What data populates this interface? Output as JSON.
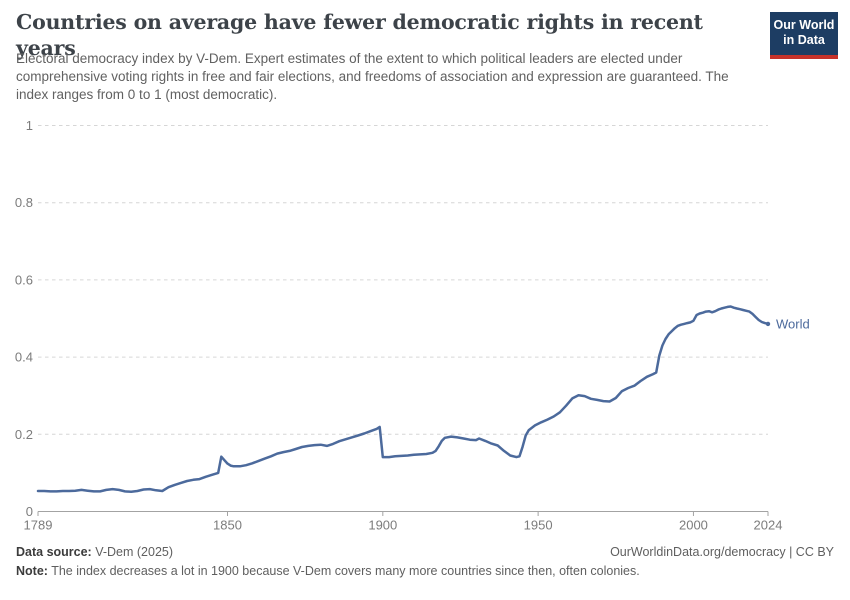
{
  "header": {
    "title": "Countries on average have fewer democratic rights in recent years",
    "logo_line1": "Our World",
    "logo_line2": "in Data",
    "logo_bg_color": "#1d3d63",
    "logo_accent_color": "#c6322a"
  },
  "subtitle": "Electoral democracy index by V-Dem. Expert estimates of the extent to which political leaders are elected under comprehensive voting rights in free and fair elections, and freedoms of association and expression are guaranteed. The index ranges from 0 to 1 (most democratic).",
  "chart_data": {
    "type": "line",
    "title": "Countries on average have fewer democratic rights in recent years",
    "xlabel": "",
    "ylabel": "Electoral democracy index",
    "x_range": [
      1789,
      2024
    ],
    "y_range": [
      0,
      1
    ],
    "grid": "horizontal-dashed",
    "xticks": [
      1789,
      1850,
      1900,
      1950,
      2000,
      2024
    ],
    "xtick_labels": [
      "1789",
      "1850",
      "1900",
      "1950",
      "2000",
      "2024"
    ],
    "yticks": [
      0,
      0.2,
      0.4,
      0.6,
      0.8,
      1
    ],
    "ytick_labels": [
      "0",
      "0.2",
      "0.4",
      "0.6",
      "0.8",
      "1"
    ],
    "line_color": "#4C6A9C",
    "grid_color": "#d6d6d6",
    "axis_color": "#a3a3a3",
    "tick_label_color": "#7c7c7c",
    "end_label": "World",
    "series": [
      {
        "name": "World",
        "color": "#4C6A9C",
        "points": [
          [
            1789,
            0.053
          ],
          [
            1791,
            0.053
          ],
          [
            1793,
            0.052
          ],
          [
            1795,
            0.052
          ],
          [
            1797,
            0.053
          ],
          [
            1799,
            0.053
          ],
          [
            1801,
            0.054
          ],
          [
            1803,
            0.056
          ],
          [
            1805,
            0.054
          ],
          [
            1807,
            0.052
          ],
          [
            1809,
            0.052
          ],
          [
            1811,
            0.056
          ],
          [
            1813,
            0.058
          ],
          [
            1815,
            0.056
          ],
          [
            1817,
            0.052
          ],
          [
            1819,
            0.051
          ],
          [
            1821,
            0.053
          ],
          [
            1823,
            0.057
          ],
          [
            1825,
            0.058
          ],
          [
            1827,
            0.055
          ],
          [
            1829,
            0.053
          ],
          [
            1831,
            0.063
          ],
          [
            1833,
            0.069
          ],
          [
            1835,
            0.074
          ],
          [
            1837,
            0.079
          ],
          [
            1839,
            0.082
          ],
          [
            1841,
            0.084
          ],
          [
            1843,
            0.09
          ],
          [
            1845,
            0.095
          ],
          [
            1847,
            0.1
          ],
          [
            1848,
            0.142
          ],
          [
            1849,
            0.133
          ],
          [
            1850,
            0.124
          ],
          [
            1851,
            0.119
          ],
          [
            1852,
            0.117
          ],
          [
            1854,
            0.117
          ],
          [
            1856,
            0.12
          ],
          [
            1858,
            0.125
          ],
          [
            1860,
            0.131
          ],
          [
            1862,
            0.137
          ],
          [
            1864,
            0.143
          ],
          [
            1866,
            0.15
          ],
          [
            1868,
            0.154
          ],
          [
            1870,
            0.157
          ],
          [
            1872,
            0.162
          ],
          [
            1874,
            0.167
          ],
          [
            1876,
            0.17
          ],
          [
            1878,
            0.172
          ],
          [
            1880,
            0.173
          ],
          [
            1882,
            0.17
          ],
          [
            1884,
            0.175
          ],
          [
            1886,
            0.182
          ],
          [
            1888,
            0.187
          ],
          [
            1890,
            0.192
          ],
          [
            1892,
            0.197
          ],
          [
            1894,
            0.202
          ],
          [
            1896,
            0.208
          ],
          [
            1898,
            0.214
          ],
          [
            1899,
            0.219
          ],
          [
            1900,
            0.141
          ],
          [
            1902,
            0.141
          ],
          [
            1904,
            0.143
          ],
          [
            1906,
            0.144
          ],
          [
            1908,
            0.145
          ],
          [
            1910,
            0.147
          ],
          [
            1912,
            0.148
          ],
          [
            1914,
            0.149
          ],
          [
            1916,
            0.152
          ],
          [
            1917,
            0.157
          ],
          [
            1918,
            0.169
          ],
          [
            1919,
            0.183
          ],
          [
            1920,
            0.191
          ],
          [
            1922,
            0.194
          ],
          [
            1924,
            0.192
          ],
          [
            1926,
            0.189
          ],
          [
            1928,
            0.186
          ],
          [
            1930,
            0.185
          ],
          [
            1931,
            0.189
          ],
          [
            1933,
            0.183
          ],
          [
            1935,
            0.176
          ],
          [
            1937,
            0.171
          ],
          [
            1939,
            0.157
          ],
          [
            1941,
            0.145
          ],
          [
            1943,
            0.141
          ],
          [
            1944,
            0.143
          ],
          [
            1945,
            0.168
          ],
          [
            1946,
            0.197
          ],
          [
            1947,
            0.211
          ],
          [
            1949,
            0.223
          ],
          [
            1951,
            0.231
          ],
          [
            1953,
            0.238
          ],
          [
            1955,
            0.246
          ],
          [
            1957,
            0.257
          ],
          [
            1959,
            0.274
          ],
          [
            1961,
            0.293
          ],
          [
            1963,
            0.301
          ],
          [
            1965,
            0.299
          ],
          [
            1967,
            0.292
          ],
          [
            1969,
            0.289
          ],
          [
            1971,
            0.286
          ],
          [
            1973,
            0.285
          ],
          [
            1975,
            0.294
          ],
          [
            1977,
            0.312
          ],
          [
            1979,
            0.32
          ],
          [
            1981,
            0.326
          ],
          [
            1983,
            0.338
          ],
          [
            1985,
            0.349
          ],
          [
            1987,
            0.356
          ],
          [
            1988,
            0.36
          ],
          [
            1989,
            0.404
          ],
          [
            1990,
            0.43
          ],
          [
            1991,
            0.447
          ],
          [
            1992,
            0.459
          ],
          [
            1993,
            0.467
          ],
          [
            1994,
            0.475
          ],
          [
            1995,
            0.481
          ],
          [
            1996,
            0.484
          ],
          [
            1997,
            0.486
          ],
          [
            1998,
            0.488
          ],
          [
            1999,
            0.49
          ],
          [
            2000,
            0.494
          ],
          [
            2001,
            0.509
          ],
          [
            2002,
            0.513
          ],
          [
            2003,
            0.515
          ],
          [
            2004,
            0.518
          ],
          [
            2005,
            0.519
          ],
          [
            2006,
            0.516
          ],
          [
            2007,
            0.519
          ],
          [
            2008,
            0.523
          ],
          [
            2009,
            0.526
          ],
          [
            2010,
            0.528
          ],
          [
            2011,
            0.53
          ],
          [
            2012,
            0.531
          ],
          [
            2013,
            0.528
          ],
          [
            2014,
            0.526
          ],
          [
            2015,
            0.524
          ],
          [
            2016,
            0.522
          ],
          [
            2017,
            0.52
          ],
          [
            2018,
            0.518
          ],
          [
            2019,
            0.512
          ],
          [
            2020,
            0.504
          ],
          [
            2021,
            0.496
          ],
          [
            2022,
            0.491
          ],
          [
            2023,
            0.488
          ],
          [
            2024,
            0.486
          ]
        ]
      }
    ]
  },
  "footer": {
    "source_label": "Data source:",
    "source_value": "V-Dem (2025)",
    "link": "OurWorldinData.org/democracy | CC BY",
    "note_label": "Note:",
    "note_value": "The index decreases a lot in 1900 because V-Dem covers many more countries since then, often colonies."
  }
}
